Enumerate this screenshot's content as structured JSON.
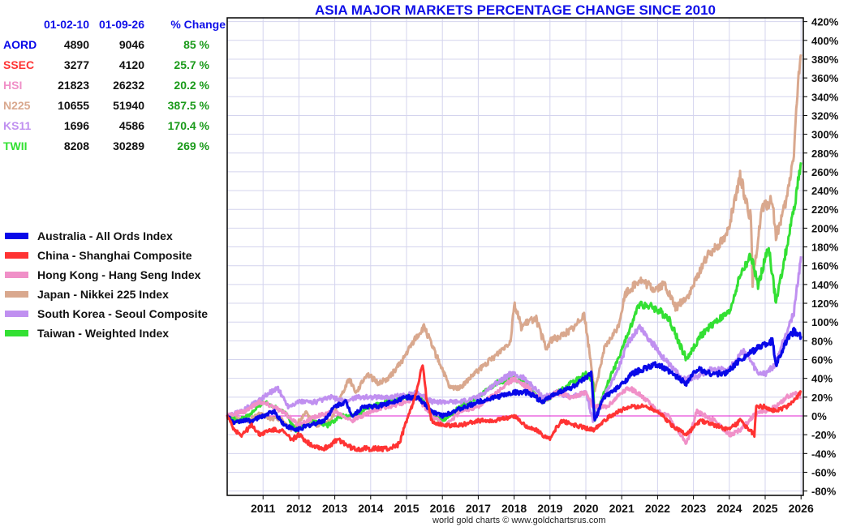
{
  "chart_data": {
    "type": "line",
    "title": "ASIA MAJOR MARKETS PERCENTAGE CHANGE SINCE 2010",
    "xlabel": "",
    "ylabel": "",
    "xlim": [
      2010,
      2026.05
    ],
    "ylim": [
      -85,
      425
    ],
    "x_ticks": [
      "2011",
      "2012",
      "2013",
      "2014",
      "2015",
      "2016",
      "2017",
      "2018",
      "2019",
      "2020",
      "2021",
      "2022",
      "2023",
      "2024",
      "2025",
      "2026"
    ],
    "y_ticks": [
      "420%",
      "400%",
      "380%",
      "360%",
      "340%",
      "320%",
      "300%",
      "280%",
      "260%",
      "240%",
      "220%",
      "200%",
      "180%",
      "160%",
      "140%",
      "120%",
      "100%",
      "80%",
      "60%",
      "40%",
      "20%",
      "0%",
      "-20%",
      "-40%",
      "-60%",
      "-80%"
    ],
    "grid": true,
    "legend_position": "left",
    "zero_line_color": "#e020d0",
    "series": [
      {
        "name": "Japan - Nikkei 225 Index",
        "color": "#d9a88e",
        "x": [
          2010.0,
          2010.3,
          2010.6,
          2010.9,
          2011.2,
          2011.5,
          2011.8,
          2012.2,
          2012.5,
          2012.9,
          2013.1,
          2013.4,
          2013.6,
          2013.9,
          2014.2,
          2014.5,
          2014.9,
          2015.2,
          2015.5,
          2015.7,
          2016.0,
          2016.2,
          2016.5,
          2016.9,
          2017.2,
          2017.5,
          2017.9,
          2018.0,
          2018.2,
          2018.6,
          2018.9,
          2019.0,
          2019.3,
          2019.7,
          2019.95,
          2020.2,
          2020.25,
          2020.5,
          2020.9,
          2021.1,
          2021.5,
          2021.9,
          2022.2,
          2022.5,
          2022.9,
          2023.3,
          2023.6,
          2023.9,
          2024.2,
          2024.3,
          2024.6,
          2024.65,
          2024.9,
          2025.2,
          2025.3,
          2025.6,
          2025.8,
          2025.9,
          2026.0
        ],
        "values": [
          2,
          -3,
          -5,
          2,
          -3,
          -3,
          -15,
          3,
          -10,
          -5,
          15,
          40,
          25,
          45,
          35,
          40,
          60,
          80,
          95,
          75,
          50,
          30,
          30,
          45,
          55,
          65,
          80,
          120,
          95,
          105,
          70,
          80,
          85,
          95,
          110,
          40,
          25,
          70,
          95,
          130,
          145,
          135,
          140,
          115,
          130,
          165,
          180,
          190,
          235,
          255,
          210,
          140,
          220,
          230,
          190,
          230,
          280,
          345,
          385
        ]
      },
      {
        "name": "Taiwan - Weighted Index",
        "color": "#33e033",
        "x": [
          2010.0,
          2010.3,
          2010.6,
          2011.0,
          2011.3,
          2011.6,
          2011.9,
          2012.3,
          2012.8,
          2013.2,
          2013.6,
          2014.0,
          2014.5,
          2015.0,
          2015.3,
          2015.7,
          2016.0,
          2016.5,
          2017.0,
          2017.5,
          2018.0,
          2018.3,
          2018.8,
          2019.2,
          2019.6,
          2020.0,
          2020.2,
          2020.25,
          2020.6,
          2020.9,
          2021.3,
          2021.5,
          2021.9,
          2022.3,
          2022.8,
          2023.2,
          2023.6,
          2024.0,
          2024.3,
          2024.6,
          2024.8,
          2025.1,
          2025.3,
          2025.5,
          2025.8,
          2026.0
        ],
        "values": [
          0,
          -5,
          0,
          15,
          10,
          5,
          -15,
          -5,
          -10,
          0,
          0,
          10,
          15,
          20,
          25,
          0,
          -5,
          10,
          20,
          35,
          40,
          35,
          15,
          25,
          35,
          45,
          35,
          -5,
          35,
          60,
          100,
          120,
          115,
          105,
          60,
          85,
          100,
          110,
          150,
          170,
          140,
          180,
          120,
          160,
          220,
          270
        ]
      },
      {
        "name": "South Korea - Seoul Composite",
        "color": "#c090f0",
        "x": [
          2010.0,
          2010.4,
          2010.8,
          2011.2,
          2011.4,
          2011.7,
          2012.0,
          2012.5,
          2012.9,
          2013.3,
          2013.6,
          2014.0,
          2014.5,
          2015.0,
          2015.3,
          2015.7,
          2016.0,
          2016.5,
          2017.0,
          2017.5,
          2017.9,
          2018.3,
          2018.8,
          2019.2,
          2019.6,
          2020.0,
          2020.2,
          2020.5,
          2020.9,
          2021.2,
          2021.5,
          2021.9,
          2022.3,
          2022.7,
          2023.0,
          2023.5,
          2024.0,
          2024.4,
          2024.8,
          2025.0,
          2025.3,
          2025.5,
          2025.8,
          2026.0
        ],
        "values": [
          0,
          5,
          15,
          25,
          30,
          10,
          15,
          15,
          20,
          15,
          20,
          20,
          20,
          22,
          25,
          15,
          15,
          15,
          20,
          35,
          45,
          40,
          20,
          25,
          20,
          25,
          -5,
          20,
          50,
          80,
          95,
          75,
          55,
          40,
          40,
          50,
          50,
          70,
          45,
          45,
          55,
          80,
          110,
          170
        ]
      },
      {
        "name": "Hong Kong - Hang Seng Index",
        "color": "#f090c8",
        "x": [
          2010.0,
          2010.5,
          2010.9,
          2011.3,
          2011.7,
          2012.0,
          2012.5,
          2013.0,
          2013.5,
          2014.0,
          2014.5,
          2015.0,
          2015.3,
          2015.7,
          2016.1,
          2016.5,
          2017.0,
          2017.5,
          2018.0,
          2018.4,
          2018.8,
          2019.2,
          2019.6,
          2020.0,
          2020.2,
          2020.6,
          2021.0,
          2021.2,
          2021.6,
          2022.0,
          2022.3,
          2022.8,
          2023.1,
          2023.6,
          2024.0,
          2024.3,
          2024.8,
          2025.0,
          2025.3,
          2025.6,
          2025.9,
          2026.0
        ],
        "values": [
          0,
          5,
          15,
          10,
          0,
          -10,
          0,
          5,
          -5,
          5,
          10,
          15,
          20,
          0,
          -10,
          5,
          10,
          25,
          40,
          30,
          15,
          25,
          20,
          25,
          10,
          10,
          25,
          30,
          20,
          5,
          0,
          -30,
          5,
          -5,
          -20,
          -15,
          5,
          5,
          10,
          20,
          25,
          20
        ]
      },
      {
        "name": "Australia - All Ords Index",
        "color": "#0808e8",
        "x": [
          2010.0,
          2010.2,
          2010.4,
          2010.7,
          2011.0,
          2011.3,
          2011.6,
          2011.9,
          2012.3,
          2012.7,
          2013.0,
          2013.3,
          2013.5,
          2013.8,
          2014.2,
          2014.6,
          2015.0,
          2015.3,
          2015.7,
          2016.0,
          2016.3,
          2016.7,
          2017.0,
          2017.5,
          2018.0,
          2018.4,
          2018.8,
          2019.2,
          2019.6,
          2020.0,
          2020.15,
          2020.25,
          2020.5,
          2020.9,
          2021.3,
          2021.6,
          2022.0,
          2022.4,
          2022.8,
          2023.1,
          2023.5,
          2023.9,
          2024.3,
          2024.7,
          2024.9,
          2025.2,
          2025.3,
          2025.6,
          2025.8,
          2026.0
        ],
        "values": [
          0,
          -8,
          -5,
          -5,
          0,
          5,
          -10,
          -15,
          -10,
          -5,
          10,
          15,
          0,
          10,
          10,
          15,
          20,
          20,
          5,
          0,
          5,
          10,
          15,
          20,
          25,
          25,
          15,
          25,
          30,
          40,
          45,
          -5,
          20,
          30,
          45,
          50,
          55,
          45,
          35,
          50,
          45,
          45,
          60,
          70,
          75,
          80,
          55,
          80,
          90,
          85
        ]
      },
      {
        "name": "China - Shanghai Composite",
        "color": "#ff3333",
        "x": [
          2010.0,
          2010.2,
          2010.4,
          2010.7,
          2010.9,
          2011.2,
          2011.5,
          2011.8,
          2012.0,
          2012.3,
          2012.7,
          2012.9,
          2013.1,
          2013.5,
          2013.8,
          2014.2,
          2014.5,
          2014.8,
          2015.0,
          2015.2,
          2015.45,
          2015.55,
          2015.7,
          2016.0,
          2016.5,
          2017.0,
          2017.5,
          2018.0,
          2018.3,
          2018.6,
          2019.0,
          2019.3,
          2019.7,
          2020.2,
          2020.5,
          2020.9,
          2021.3,
          2021.7,
          2022.0,
          2022.4,
          2022.8,
          2023.2,
          2023.6,
          2024.0,
          2024.3,
          2024.7,
          2024.75,
          2025.0,
          2025.3,
          2025.6,
          2025.9,
          2026.0
        ],
        "values": [
          0,
          -15,
          -20,
          -10,
          -20,
          -15,
          -15,
          -25,
          -20,
          -30,
          -35,
          -30,
          -25,
          -35,
          -35,
          -35,
          -35,
          -30,
          -5,
          15,
          55,
          20,
          -5,
          -10,
          -10,
          -5,
          -5,
          0,
          -10,
          -15,
          -25,
          -5,
          -10,
          -15,
          -5,
          5,
          10,
          10,
          5,
          -10,
          -20,
          -5,
          -10,
          -15,
          -5,
          -20,
          10,
          10,
          5,
          10,
          20,
          25
        ]
      }
    ],
    "summary_table": {
      "headers": [
        "",
        "01-02-10",
        "01-09-26",
        "% Change"
      ],
      "rows": [
        {
          "symbol": "AORD",
          "start": "4890",
          "end": "9046",
          "change": "85 %",
          "color": "#0808e8"
        },
        {
          "symbol": "SSEC",
          "start": "3277",
          "end": "4120",
          "change": "25.7 %",
          "color": "#ff3333"
        },
        {
          "symbol": "HSI",
          "start": "21823",
          "end": "26232",
          "change": "20.2 %",
          "color": "#f090c8"
        },
        {
          "symbol": "N225",
          "start": "10655",
          "end": "51940",
          "change": "387.5 %",
          "color": "#d9a88e"
        },
        {
          "symbol": "KS11",
          "start": "1696",
          "end": "4586",
          "change": "170.4 %",
          "color": "#c090f0"
        },
        {
          "symbol": "TWII",
          "start": "8208",
          "end": "30289",
          "change": "269 %",
          "color": "#33e033"
        }
      ]
    },
    "legend": [
      {
        "label": "Australia - All Ords Index",
        "color": "#0808e8"
      },
      {
        "label": "China - Shanghai Composite",
        "color": "#ff3333"
      },
      {
        "label": "Hong Kong - Hang Seng Index",
        "color": "#f090c8"
      },
      {
        "label": "Japan - Nikkei 225 Index",
        "color": "#d9a88e"
      },
      {
        "label": "South Korea - Seoul Composite",
        "color": "#c090f0"
      },
      {
        "label": "Taiwan - Weighted Index",
        "color": "#33e033"
      }
    ],
    "credit": "world gold charts © www.goldchartsrus.com"
  }
}
